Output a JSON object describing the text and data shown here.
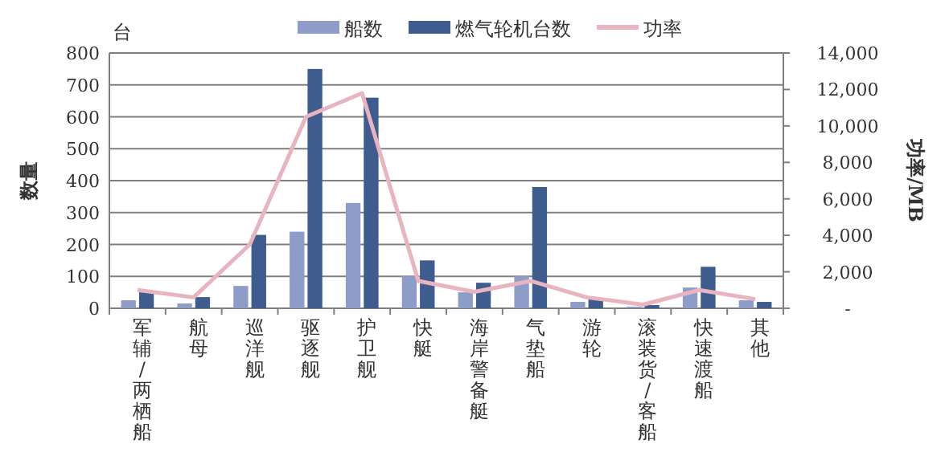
{
  "chart_data": {
    "type": "bar",
    "ylabel": "数量",
    "y2label": "功率/MB",
    "annotations": [
      "台"
    ],
    "categories": [
      "军辅/两栖船",
      "航母",
      "巡洋舰",
      "驱逐舰",
      "护卫舰",
      "快艇",
      "海岸警备艇",
      "气垫船",
      "游轮",
      "滚装货/客船",
      "快速渡船",
      "其他"
    ],
    "series": [
      {
        "name": "船数",
        "color": "#8e9cc8",
        "values": [
          25,
          15,
          70,
          240,
          330,
          100,
          50,
          100,
          20,
          5,
          65,
          25
        ]
      },
      {
        "name": "燃气轮机台数",
        "color": "#3e5d8e",
        "values": [
          55,
          35,
          230,
          750,
          660,
          150,
          80,
          380,
          30,
          10,
          130,
          20
        ]
      },
      {
        "name": "功率",
        "color": "#e8b4bf",
        "type": "line",
        "axis": "y2",
        "values": [
          1000,
          600,
          3500,
          10500,
          11800,
          1500,
          900,
          1500,
          600,
          200,
          1000,
          500
        ]
      }
    ],
    "ylim": [
      0,
      800
    ],
    "yticks": [
      0,
      100,
      200,
      300,
      400,
      500,
      600,
      700,
      800
    ],
    "y2lim": [
      0,
      14000
    ],
    "y2ticks": [
      {
        "value": 0,
        "label": "-"
      },
      {
        "value": 2000,
        "label": "2,000"
      },
      {
        "value": 4000,
        "label": "4,000"
      },
      {
        "value": 6000,
        "label": "6,000"
      },
      {
        "value": 8000,
        "label": "8,000"
      },
      {
        "value": 10000,
        "label": "10,000"
      },
      {
        "value": 12000,
        "label": "12,000"
      },
      {
        "value": 14000,
        "label": "14,000"
      }
    ],
    "grid": "y",
    "legend": "top"
  }
}
